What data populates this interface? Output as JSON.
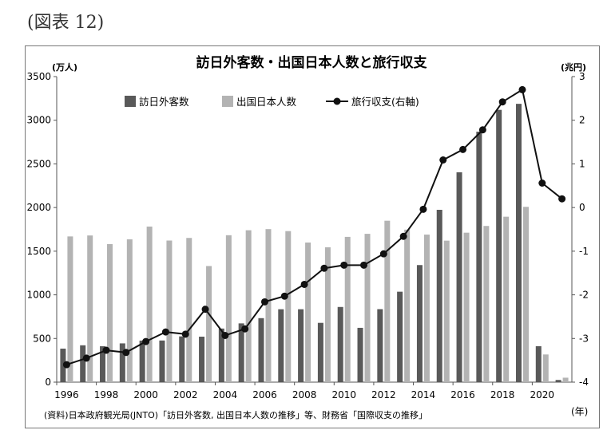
{
  "figure_label": "(図表 12)",
  "source_note": "(資料)日本政府観光局(JNTO)「訪日外客数, 出国日本人数の推移」等、財務省「国際収支の推移」",
  "colors": {
    "visitors": "#595959",
    "departures": "#b3b3b3",
    "balance": "#111111"
  },
  "chart_data": {
    "type": "bar",
    "title": "訪日外客数・出国日本人数と旅行収支",
    "left_unit": "(万人)",
    "right_unit": "(兆円)",
    "x_unit": "(年)",
    "x": [
      1996,
      1997,
      1998,
      1999,
      2000,
      2001,
      2002,
      2003,
      2004,
      2005,
      2006,
      2007,
      2008,
      2009,
      2010,
      2011,
      2012,
      2013,
      2014,
      2015,
      2016,
      2017,
      2018,
      2019,
      2020,
      2021
    ],
    "x_tick_labels": [
      "1996",
      "1998",
      "2000",
      "2002",
      "2004",
      "2006",
      "2008",
      "2010",
      "2012",
      "2014",
      "2016",
      "2018",
      "2020"
    ],
    "y_left_ticks": [
      "0",
      "500",
      "1000",
      "1500",
      "2000",
      "2500",
      "3000",
      "3500"
    ],
    "y_right_ticks": [
      "-4",
      "-3",
      "-2",
      "-1",
      "0",
      "1",
      "2",
      "3"
    ],
    "ylim_left": [
      0,
      3500
    ],
    "ylim_right": [
      -4,
      3
    ],
    "legend_position": "top-center",
    "series": [
      {
        "name": "訪日外客数",
        "kind": "bar",
        "axis": "left",
        "values": [
          384,
          422,
          411,
          444,
          476,
          477,
          524,
          521,
          614,
          673,
          733,
          835,
          835,
          679,
          861,
          622,
          836,
          1036,
          1341,
          1974,
          2404,
          2869,
          3119,
          3188,
          412,
          25
        ]
      },
      {
        "name": "出国日本人数",
        "kind": "bar",
        "axis": "left",
        "values": [
          1669,
          1680,
          1581,
          1636,
          1782,
          1622,
          1652,
          1330,
          1683,
          1740,
          1753,
          1730,
          1599,
          1545,
          1664,
          1699,
          1849,
          1747,
          1690,
          1621,
          1712,
          1789,
          1895,
          2008,
          317,
          51
        ]
      },
      {
        "name": "旅行収支(右軸)",
        "kind": "line",
        "axis": "right",
        "values": [
          -3.6,
          -3.45,
          -3.27,
          -3.32,
          -3.07,
          -2.85,
          -2.9,
          -2.33,
          -2.93,
          -2.78,
          -2.16,
          -2.03,
          -1.76,
          -1.39,
          -1.32,
          -1.32,
          -1.06,
          -0.66,
          -0.04,
          1.09,
          1.33,
          1.78,
          2.42,
          2.7,
          0.56,
          0.2
        ]
      }
    ]
  }
}
